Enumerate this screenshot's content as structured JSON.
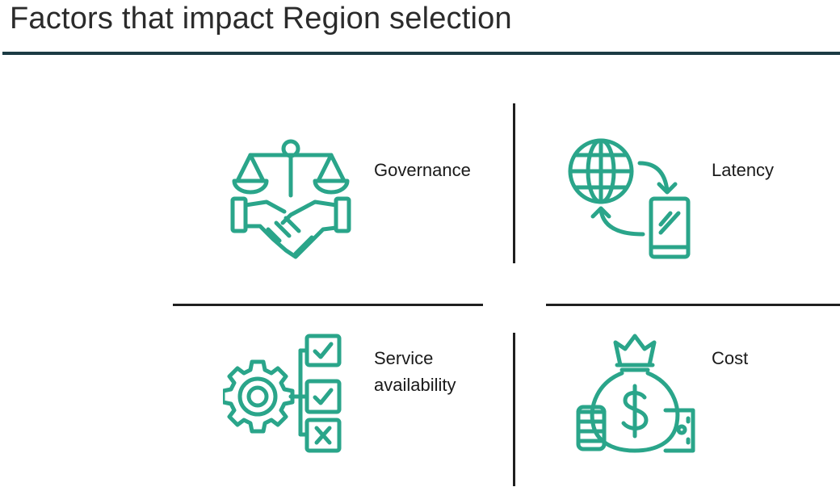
{
  "title": "Factors that impact Region selection",
  "colors": {
    "accent": "#2aa58a",
    "rule": "#1b3b44",
    "divider": "#1f1f1f"
  },
  "factors": [
    {
      "label": "Governance",
      "icon": "handshake-scales-icon"
    },
    {
      "label": "Latency",
      "icon": "globe-phone-icon"
    },
    {
      "label": "Service availability",
      "icon": "gear-checklist-icon"
    },
    {
      "label": "Cost",
      "icon": "money-bag-icon"
    }
  ]
}
